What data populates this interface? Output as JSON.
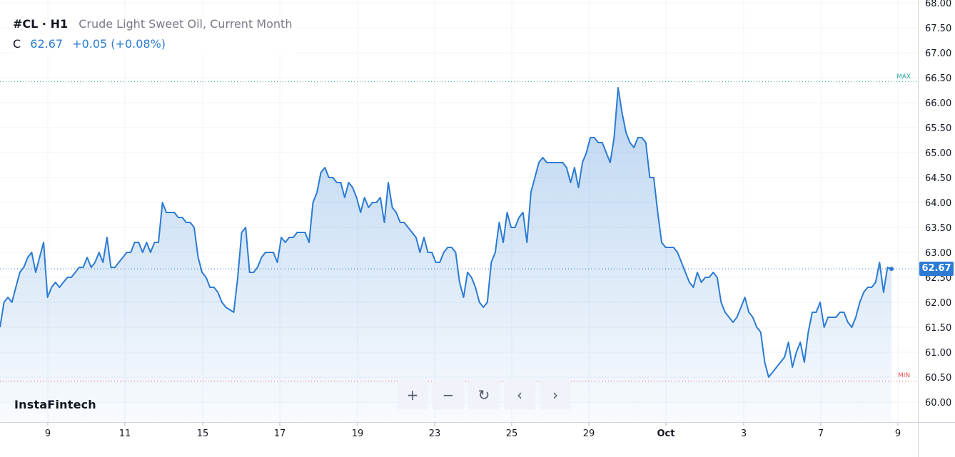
{
  "header": {
    "symbol": "#CL · H1",
    "description": "Crude Light Sweet Oil, Current Month",
    "close_label": "C",
    "close_value": "62.67",
    "change": "+0.05 (+0.08%)"
  },
  "watermark": "InstaFintech",
  "controls": {
    "zoom_in": "+",
    "zoom_out": "−",
    "reset": "↻",
    "scroll_left": "‹",
    "scroll_right": "›"
  },
  "markers": {
    "max_label": "MAX",
    "min_label": "MIN",
    "max_value": 66.42,
    "min_value": 60.42
  },
  "colors": {
    "line": "#2b7bd3",
    "fill": "#2b7bd3",
    "max": "#26a69a",
    "min": "#ef5350"
  },
  "chart_data": {
    "type": "area",
    "ylim": [
      59.8,
      68.0
    ],
    "ytick_labels": [
      "60.00",
      "60.50",
      "61.00",
      "61.50",
      "62.00",
      "62.50",
      "63.00",
      "63.50",
      "64.00",
      "64.50",
      "65.00",
      "65.50",
      "66.00",
      "66.50",
      "67.00",
      "67.50",
      "68.00"
    ],
    "xtick_labels": [
      "9",
      "11",
      "15",
      "17",
      "19",
      "23",
      "25",
      "29",
      "Oct",
      "3",
      "7",
      "9"
    ],
    "last_price": "62.67",
    "series": [
      {
        "values": [
          61.5,
          62.0,
          62.1,
          62.0,
          62.3,
          62.6,
          62.7,
          62.9,
          63.0,
          62.6,
          62.9,
          63.2,
          62.1,
          62.3,
          62.4,
          62.3,
          62.4,
          62.5,
          62.5,
          62.6,
          62.7,
          62.7,
          62.9,
          62.7,
          62.8,
          63.0,
          62.8,
          63.3,
          62.7,
          62.7,
          62.8,
          62.9,
          63.0,
          63.0,
          63.2,
          63.2,
          63.0,
          63.2,
          63.0,
          63.2,
          63.2,
          64.0,
          63.8,
          63.8,
          63.8,
          63.7,
          63.7,
          63.6,
          63.6,
          63.5,
          62.9,
          62.6,
          62.5,
          62.3,
          62.3,
          62.2,
          62.0,
          61.9,
          61.85,
          61.8,
          62.5,
          63.4,
          63.5,
          62.6,
          62.6,
          62.7,
          62.9,
          63.0,
          63.0,
          63.0,
          62.8,
          63.3,
          63.2,
          63.3,
          63.3,
          63.4,
          63.4,
          63.4,
          63.2,
          64.0,
          64.2,
          64.6,
          64.7,
          64.5,
          64.5,
          64.4,
          64.4,
          64.1,
          64.4,
          64.3,
          64.1,
          63.8,
          64.1,
          63.9,
          64.0,
          64.0,
          64.1,
          63.6,
          64.4,
          63.9,
          63.8,
          63.6,
          63.6,
          63.5,
          63.4,
          63.3,
          63.0,
          63.3,
          63.0,
          63.0,
          62.8,
          62.8,
          63.0,
          63.1,
          63.1,
          63.0,
          62.4,
          62.1,
          62.6,
          62.5,
          62.3,
          62.0,
          61.9,
          62.0,
          62.8,
          63.0,
          63.6,
          63.2,
          63.8,
          63.5,
          63.5,
          63.7,
          63.8,
          63.2,
          64.2,
          64.5,
          64.8,
          64.9,
          64.8,
          64.8,
          64.8,
          64.8,
          64.8,
          64.7,
          64.4,
          64.7,
          64.3,
          64.8,
          65.0,
          65.3,
          65.3,
          65.2,
          65.2,
          65.0,
          64.8,
          65.3,
          66.3,
          65.8,
          65.4,
          65.2,
          65.1,
          65.3,
          65.3,
          65.2,
          64.5,
          64.5,
          63.8,
          63.2,
          63.1,
          63.1,
          63.1,
          63.0,
          62.8,
          62.6,
          62.4,
          62.3,
          62.6,
          62.4,
          62.5,
          62.5,
          62.6,
          62.5,
          62.0,
          61.8,
          61.7,
          61.6,
          61.7,
          61.9,
          62.1,
          61.8,
          61.7,
          61.5,
          61.4,
          60.8,
          60.5,
          60.6,
          60.7,
          60.8,
          60.9,
          61.2,
          60.7,
          61.0,
          61.2,
          60.8,
          61.4,
          61.8,
          61.8,
          62.0,
          61.5,
          61.7,
          61.7,
          61.7,
          61.8,
          61.8,
          61.6,
          61.5,
          61.7,
          62.0,
          62.2,
          62.3,
          62.3,
          62.4,
          62.8,
          62.2,
          62.7,
          62.67
        ]
      }
    ]
  }
}
